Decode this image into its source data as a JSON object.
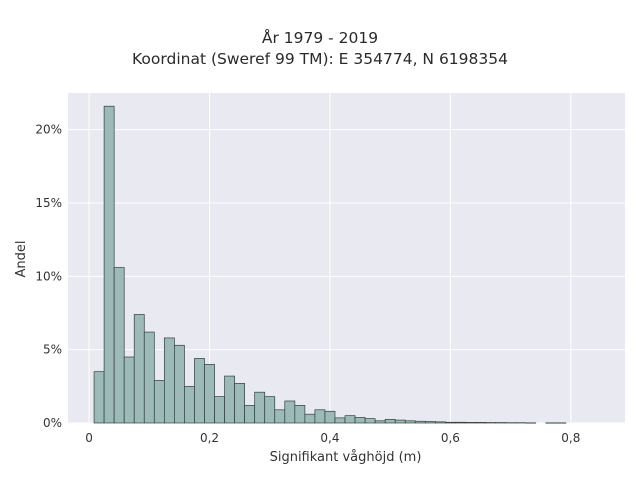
{
  "chart_data": {
    "type": "bar",
    "title": "År 1979 - 2019",
    "subtitle": "Koordinat (Sweref 99 TM): E 354774, N 6198354",
    "xlabel": "Signifikant våghöjd (m)",
    "ylabel": "Andel",
    "xlim": [
      -0.035,
      0.89
    ],
    "ylim": [
      0,
      22.5
    ],
    "x_ticks": [
      0,
      0.2,
      0.4,
      0.6,
      0.8
    ],
    "x_tick_labels": [
      "0",
      "0,2",
      "0,4",
      "0,6",
      "0,8"
    ],
    "y_ticks": [
      0,
      5,
      10,
      15,
      20
    ],
    "y_tick_labels": [
      "0%",
      "5%",
      "10%",
      "15%",
      "20%"
    ],
    "bin_width": 0.01667,
    "bin_start": 0.0083,
    "values": [
      3.5,
      21.6,
      10.6,
      4.5,
      7.4,
      6.2,
      2.9,
      5.8,
      5.3,
      2.5,
      4.4,
      4.0,
      1.8,
      3.2,
      2.7,
      1.2,
      2.1,
      1.8,
      0.9,
      1.5,
      1.2,
      0.6,
      0.9,
      0.8,
      0.35,
      0.5,
      0.38,
      0.3,
      0.15,
      0.25,
      0.2,
      0.15,
      0.12,
      0.1,
      0.08,
      0.05,
      0.05,
      0.04,
      0.04,
      0.03,
      0.03,
      0.02,
      0.02,
      0.01,
      0.0,
      0.01,
      0.01,
      0.0
    ],
    "bar_color": "#9dbab8",
    "bar_edge_color": "#2f3f3e",
    "background": "#e9e9f1",
    "grid": true
  }
}
